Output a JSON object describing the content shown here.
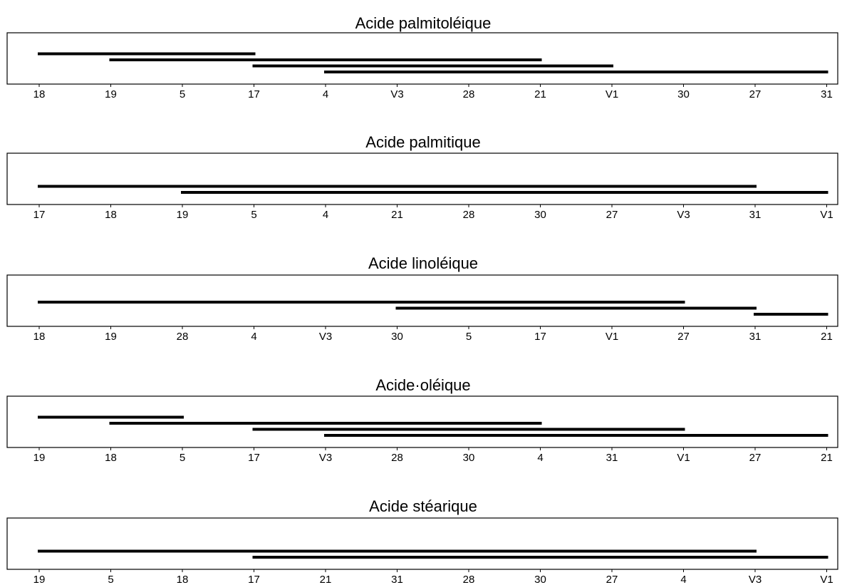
{
  "chart_data": [
    {
      "type": "grouping-lines",
      "title": "Acide palmitoléique",
      "categories": [
        "18",
        "19",
        "5",
        "17",
        "4",
        "V3",
        "28",
        "21",
        "V1",
        "30",
        "27",
        "31"
      ],
      "groups": [
        {
          "from": "18",
          "to": "17"
        },
        {
          "from": "19",
          "to": "21"
        },
        {
          "from": "17",
          "to": "V1"
        },
        {
          "from": "4",
          "to": "31"
        }
      ]
    },
    {
      "type": "grouping-lines",
      "title": "Acide palmitique",
      "categories": [
        "17",
        "18",
        "19",
        "5",
        "4",
        "21",
        "28",
        "30",
        "27",
        "V3",
        "31",
        "V1"
      ],
      "groups": [
        {
          "from": "17",
          "to": "31"
        },
        {
          "from": "19",
          "to": "V1"
        }
      ]
    },
    {
      "type": "grouping-lines",
      "title": "Acide linoléique",
      "categories": [
        "18",
        "19",
        "28",
        "4",
        "V3",
        "30",
        "5",
        "17",
        "V1",
        "27",
        "31",
        "21"
      ],
      "groups": [
        {
          "from": "18",
          "to": "27"
        },
        {
          "from": "30",
          "to": "31"
        },
        {
          "from": "31",
          "to": "21"
        }
      ]
    },
    {
      "type": "grouping-lines",
      "title": "Acide·oléique",
      "categories": [
        "19",
        "18",
        "5",
        "17",
        "V3",
        "28",
        "30",
        "4",
        "31",
        "V1",
        "27",
        "21"
      ],
      "groups": [
        {
          "from": "19",
          "to": "5"
        },
        {
          "from": "18",
          "to": "4"
        },
        {
          "from": "17",
          "to": "V1"
        },
        {
          "from": "V3",
          "to": "21"
        }
      ]
    },
    {
      "type": "grouping-lines",
      "title": "Acide stéarique",
      "categories": [
        "19",
        "5",
        "18",
        "17",
        "21",
        "31",
        "28",
        "30",
        "27",
        "4",
        "V3",
        "V1"
      ],
      "groups": [
        {
          "from": "19",
          "to": "V3"
        },
        {
          "from": "17",
          "to": "V1"
        }
      ]
    }
  ]
}
